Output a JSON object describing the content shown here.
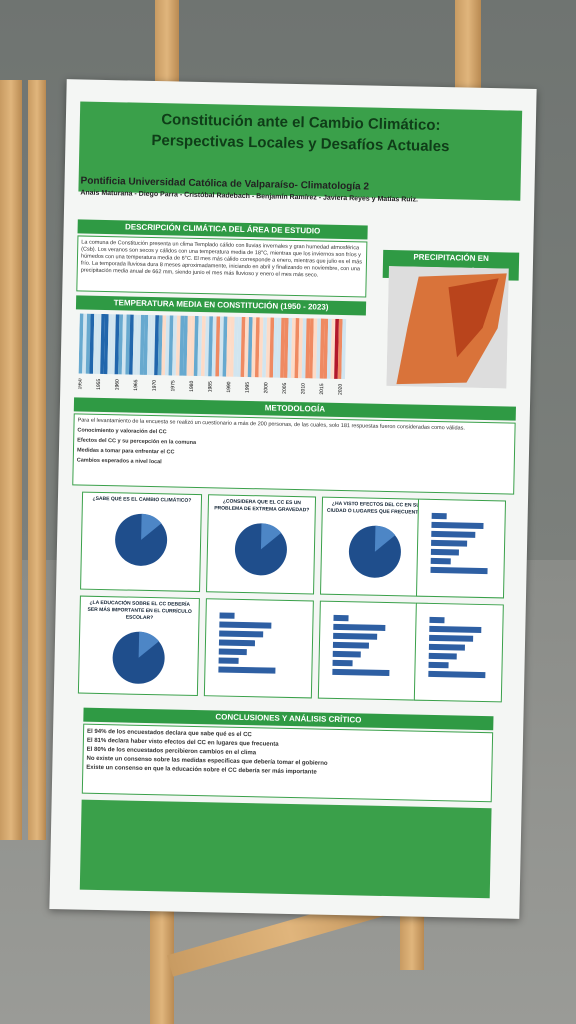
{
  "poster": {
    "title_line1": "Constitución ante el Cambio Climático:",
    "title_line2": "Perspectivas Locales y Desafíos Actuales",
    "institution": "Pontificia Universidad Católica de Valparaíso- Climatología 2",
    "authors": "Anais Maturana - Diego Parra - Cristóbal Radebach - Benjamín Ramírez - Javiera Reyes y Matías Ruiz.",
    "description": {
      "heading": "DESCRIPCIÓN CLIMÁTICA DEL ÁREA DE ESTUDIO",
      "text": "La comuna de Constitución presenta un clima Templado cálido con lluvias invernales y gran humedad atmosférica (Csb). Los veranos son secos y cálidos con una temperatura media de 18°C, mientras que los inviernos son fríos y húmedos con una temperatura media de 6°C. El mes más cálido corresponde a enero, mientras que julio es el más frío. La temporada lluviosa dura 8 meses aproximadamente, iniciando en abril y finalizando en noviembre, con una precipitación media anual de 662 mm, siendo junio el mes más lluvioso y enero el mes más seco."
    },
    "precipitation": {
      "heading": "PRECIPITACIÓN EN CONSTITUCIÓN"
    },
    "temperature": {
      "heading": "TEMPERATURA MEDIA EN CONSTITUCIÓN (1950 - 2023)",
      "years": [
        "1950",
        "1955",
        "1960",
        "1965",
        "1970",
        "1975",
        "1980",
        "1985",
        "1990",
        "1995",
        "2000",
        "2005",
        "2010",
        "2015",
        "2020"
      ]
    },
    "methodology": {
      "heading": "METODOLOGÍA",
      "intro": "Para el levantamiento de la encuesta se realizó un cuestionario a más de 200 personas, de las cuales, solo 181 respuestas fueron consideradas como válidas.",
      "bullets": [
        "Conocimiento y valoración del CC",
        "Efectos del CC y su percepción en la comuna",
        "Medidas a tomar para enfrentar el CC",
        "Cambios esperados a nivel local"
      ]
    },
    "charts": [
      "¿SABE QUÉ ES EL CAMBIO CLIMÁTICO?",
      "¿CONSIDERA QUE EL CC ES UN PROBLEMA DE EXTREMA GRAVEDAD?",
      "¿HA VISTO EFECTOS DEL CC EN SU CIUDAD O LUGARES QUE FRECUENTA?",
      "¿LA EDUCACIÓN SOBRE EL CC DEBERÍA SER MÁS IMPORTANTE EN EL CURRÍCULO ESCOLAR?"
    ],
    "conclusions": {
      "heading": "CONCLUSIONES Y ANÁLISIS CRÍTICO",
      "items": [
        "El 94% de los encuestados declara que sabe qué es el CC",
        "El 81% declara haber visto efectos del CC en lugares que frecuenta",
        "El 80% de los encuestados percibieron cambios en el clima",
        "No existe un consenso sobre las medidas específicas que debería tomar el gobierno",
        "Existe un consenso en que la educación sobre el CC debería ser más importante"
      ]
    }
  }
}
